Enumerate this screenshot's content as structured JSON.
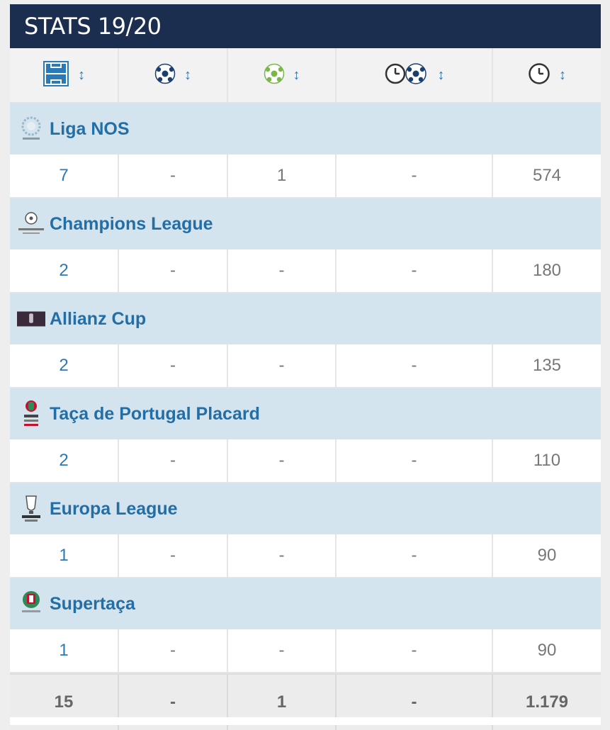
{
  "title": "STATS 19/20",
  "header_icons": [
    "pitch-icon",
    "ball-icon",
    "green-ball-icon",
    "clock-ball-icon",
    "clock-icon"
  ],
  "sort_glyph": "↕",
  "colors": {
    "title_bg": "#1b2e50",
    "comp_bg": "#d3e4ef",
    "link": "#246ea6"
  },
  "competitions": [
    {
      "name": "Liga NOS",
      "logo": "liga-nos-logo",
      "stats": [
        "7",
        "-",
        "1",
        "-",
        "574"
      ]
    },
    {
      "name": "Champions League",
      "logo": "champions-league-logo",
      "stats": [
        "2",
        "-",
        "-",
        "-",
        "180"
      ]
    },
    {
      "name": "Allianz Cup",
      "logo": "allianz-cup-logo",
      "stats": [
        "2",
        "-",
        "-",
        "-",
        "135"
      ]
    },
    {
      "name": "Taça de Portugal Placard",
      "logo": "taca-de-portugal-logo",
      "stats": [
        "2",
        "-",
        "-",
        "-",
        "110"
      ]
    },
    {
      "name": "Europa League",
      "logo": "europa-league-logo",
      "stats": [
        "1",
        "-",
        "-",
        "-",
        "90"
      ]
    },
    {
      "name": "Supertaça",
      "logo": "supertaca-logo",
      "stats": [
        "1",
        "-",
        "-",
        "-",
        "90"
      ]
    }
  ],
  "totals": [
    "15",
    "-",
    "1",
    "-",
    "1.179"
  ]
}
